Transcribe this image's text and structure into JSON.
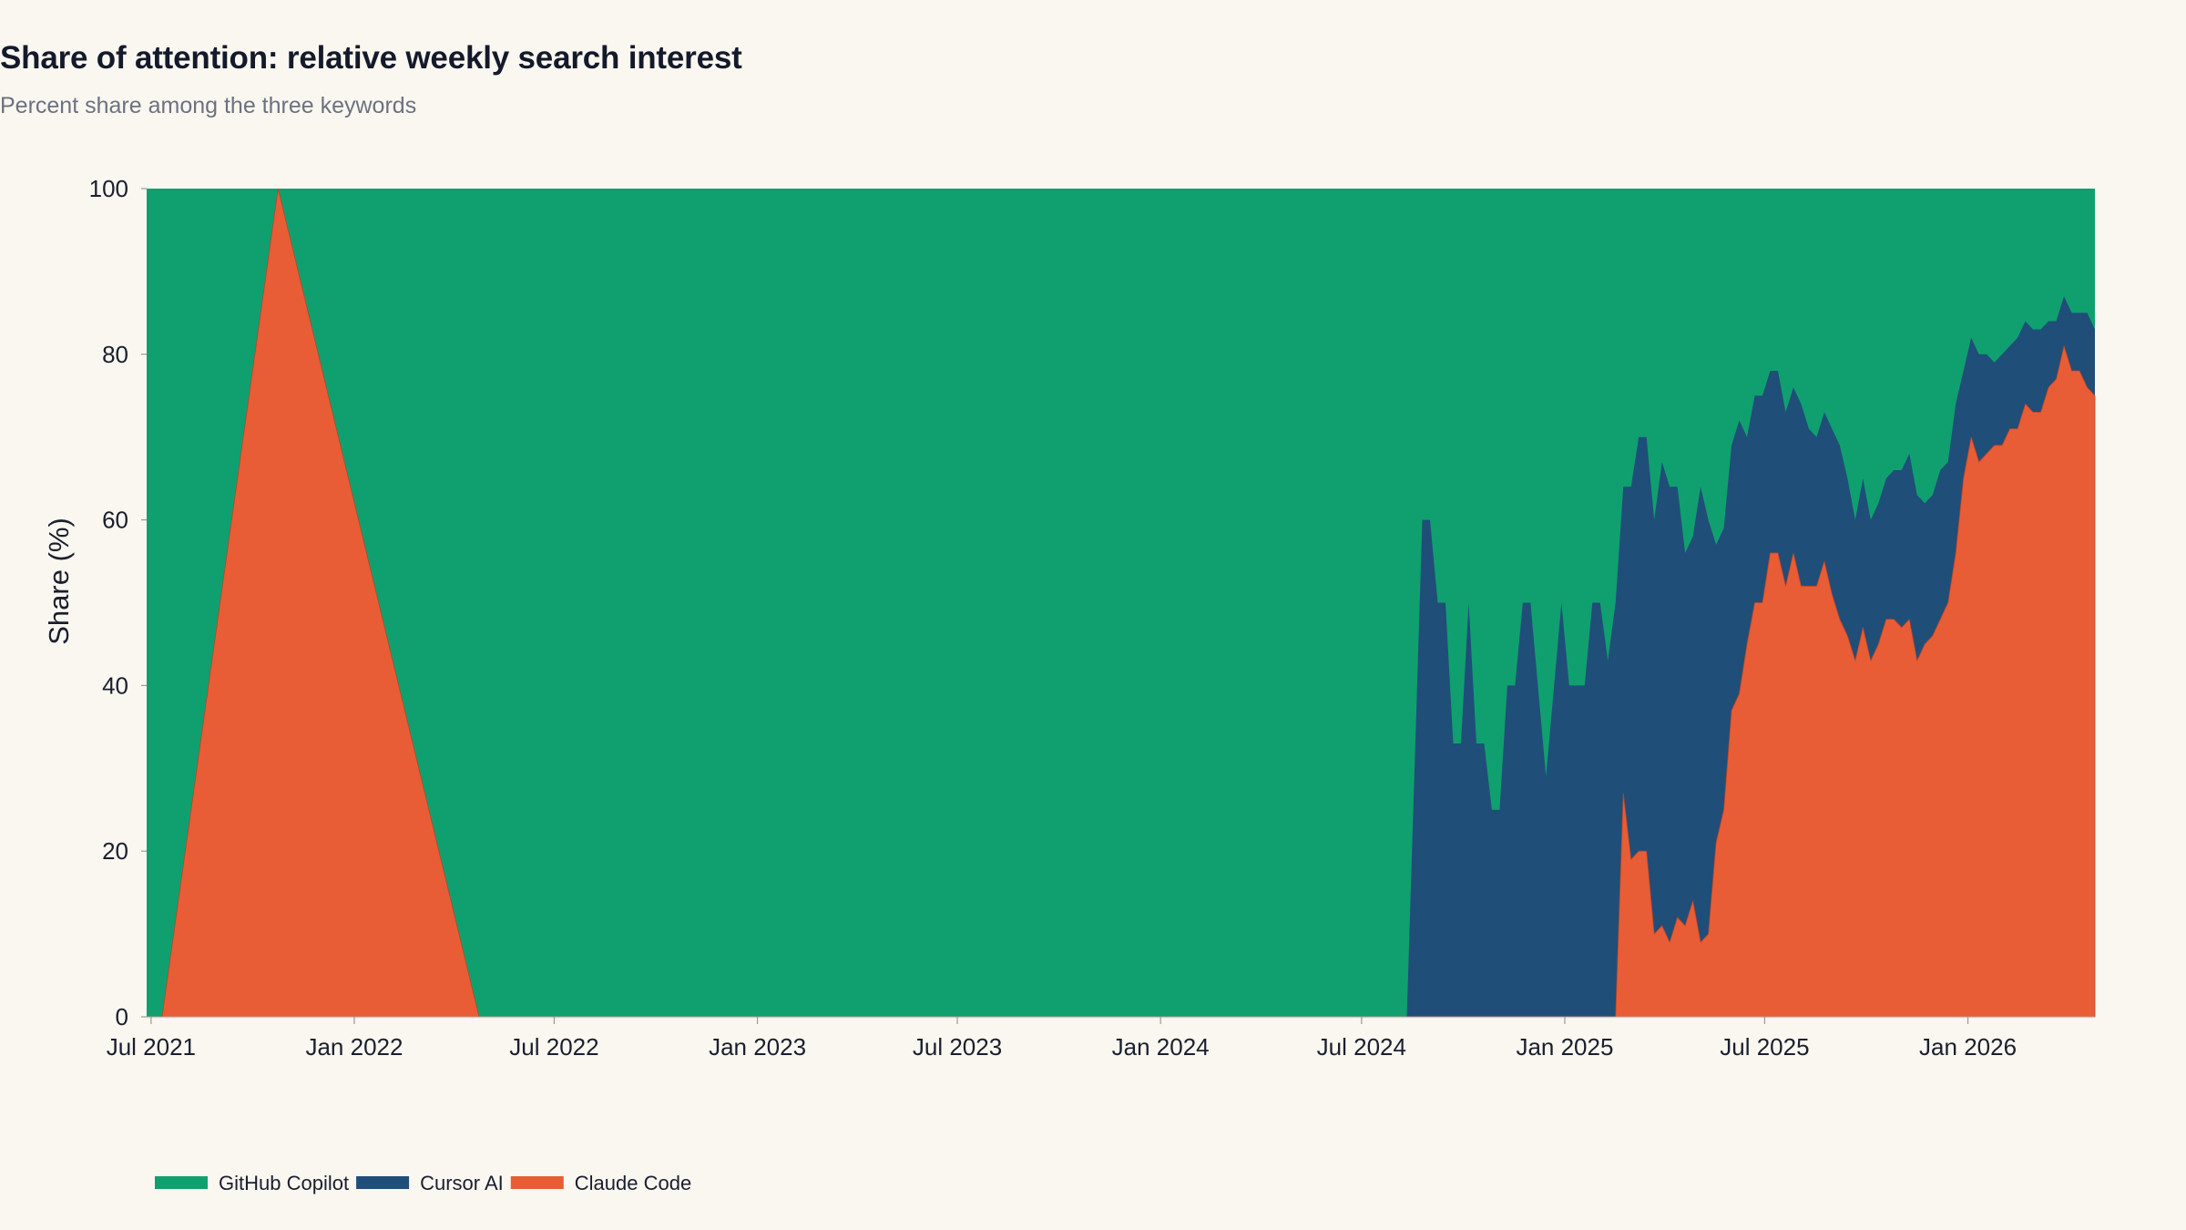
{
  "title": "Share of attention: relative weekly search interest",
  "subtitle": "Percent share among the three keywords",
  "chart_data": {
    "type": "area",
    "stacked": true,
    "normalized_percent": true,
    "ylabel": "Share (%)",
    "xlabel": "",
    "ylim": [
      0,
      100
    ],
    "xlim": [
      "2021-06-27",
      "2026-04-26"
    ],
    "y_ticks": [
      0,
      20,
      40,
      60,
      80,
      100
    ],
    "x_ticks": [
      {
        "date": "2021-07-01",
        "label": "Jul 2021"
      },
      {
        "date": "2022-01-01",
        "label": "Jan 2022"
      },
      {
        "date": "2022-07-01",
        "label": "Jul 2022"
      },
      {
        "date": "2023-01-01",
        "label": "Jan 2023"
      },
      {
        "date": "2023-07-01",
        "label": "Jul 2023"
      },
      {
        "date": "2024-01-01",
        "label": "Jan 2024"
      },
      {
        "date": "2024-07-01",
        "label": "Jul 2024"
      },
      {
        "date": "2025-01-01",
        "label": "Jan 2025"
      },
      {
        "date": "2025-07-01",
        "label": "Jul 2025"
      },
      {
        "date": "2026-01-01",
        "label": "Jan 2026"
      }
    ],
    "grid": false,
    "legend_position": "bottom-left",
    "stack_order": [
      "Claude Code",
      "Cursor AI",
      "GitHub Copilot"
    ],
    "series": [
      {
        "name": "GitHub Copilot",
        "color": "#10a06f",
        "values": "remainder to 100"
      },
      {
        "name": "Cursor AI",
        "color": "#1f4e79",
        "points": [
          [
            "2021-06-27",
            0
          ],
          [
            "2024-08-11",
            0
          ],
          [
            "2024-08-25",
            60
          ],
          [
            "2024-09-01",
            60
          ],
          [
            "2024-09-08",
            50
          ],
          [
            "2024-09-15",
            50
          ],
          [
            "2024-09-22",
            33
          ],
          [
            "2024-09-29",
            33
          ],
          [
            "2024-10-06",
            50
          ],
          [
            "2024-10-13",
            33
          ],
          [
            "2024-10-20",
            33
          ],
          [
            "2024-10-27",
            25
          ],
          [
            "2024-11-03",
            25
          ],
          [
            "2024-11-10",
            40
          ],
          [
            "2024-11-17",
            40
          ],
          [
            "2024-11-24",
            50
          ],
          [
            "2024-12-01",
            50
          ],
          [
            "2024-12-15",
            29
          ],
          [
            "2024-12-29",
            50
          ],
          [
            "2025-01-05",
            40
          ],
          [
            "2025-01-19",
            40
          ],
          [
            "2025-01-26",
            50
          ],
          [
            "2025-02-02",
            50
          ],
          [
            "2025-02-09",
            43
          ],
          [
            "2025-02-16",
            50
          ],
          [
            "2025-02-23",
            64
          ],
          [
            "2025-03-02",
            64
          ],
          [
            "2025-03-09",
            70
          ],
          [
            "2025-03-16",
            70
          ],
          [
            "2025-03-23",
            60
          ],
          [
            "2025-03-30",
            67
          ],
          [
            "2025-04-06",
            64
          ],
          [
            "2025-04-13",
            64
          ],
          [
            "2025-04-20",
            56
          ],
          [
            "2025-04-27",
            58
          ],
          [
            "2025-05-04",
            64
          ],
          [
            "2025-05-11",
            60
          ],
          [
            "2025-05-18",
            57
          ],
          [
            "2025-05-25",
            59
          ],
          [
            "2025-06-01",
            69
          ],
          [
            "2025-06-08",
            72
          ],
          [
            "2025-06-15",
            70
          ],
          [
            "2025-06-22",
            75
          ],
          [
            "2025-06-29",
            75
          ],
          [
            "2025-07-06",
            78
          ],
          [
            "2025-07-13",
            78
          ],
          [
            "2025-07-20",
            73
          ],
          [
            "2025-07-27",
            76
          ],
          [
            "2025-08-03",
            74
          ],
          [
            "2025-08-10",
            71
          ],
          [
            "2025-08-17",
            70
          ],
          [
            "2025-08-24",
            73
          ],
          [
            "2025-08-31",
            71
          ],
          [
            "2025-09-07",
            69
          ],
          [
            "2025-09-14",
            65
          ],
          [
            "2025-09-21",
            60
          ],
          [
            "2025-09-28",
            65
          ],
          [
            "2025-10-05",
            60
          ],
          [
            "2025-10-12",
            62
          ],
          [
            "2025-10-19",
            65
          ],
          [
            "2025-10-26",
            66
          ],
          [
            "2025-11-02",
            66
          ],
          [
            "2025-11-09",
            68
          ],
          [
            "2025-11-16",
            63
          ],
          [
            "2025-11-23",
            62
          ],
          [
            "2025-11-30",
            63
          ],
          [
            "2025-12-07",
            66
          ],
          [
            "2025-12-14",
            67
          ],
          [
            "2025-12-21",
            74
          ],
          [
            "2025-12-28",
            78
          ],
          [
            "2026-01-04",
            82
          ],
          [
            "2026-01-11",
            80
          ],
          [
            "2026-01-18",
            80
          ],
          [
            "2026-01-25",
            79
          ],
          [
            "2026-02-01",
            80
          ],
          [
            "2026-02-08",
            81
          ],
          [
            "2026-02-15",
            82
          ],
          [
            "2026-02-22",
            84
          ],
          [
            "2026-03-01",
            83
          ],
          [
            "2026-03-08",
            83
          ],
          [
            "2026-03-15",
            84
          ],
          [
            "2026-03-22",
            84
          ],
          [
            "2026-03-29",
            87
          ],
          [
            "2026-04-05",
            85
          ],
          [
            "2026-04-12",
            85
          ],
          [
            "2026-04-19",
            85
          ],
          [
            "2026-04-26",
            83
          ]
        ]
      },
      {
        "name": "Claude Code",
        "color": "#e85d35",
        "points": [
          [
            "2021-06-27",
            0
          ],
          [
            "2021-07-11",
            0
          ],
          [
            "2021-10-24",
            100
          ],
          [
            "2022-04-24",
            0
          ],
          [
            "2025-02-16",
            0
          ],
          [
            "2025-02-23",
            27
          ],
          [
            "2025-03-02",
            19
          ],
          [
            "2025-03-09",
            20
          ],
          [
            "2025-03-16",
            20
          ],
          [
            "2025-03-23",
            10
          ],
          [
            "2025-03-30",
            11
          ],
          [
            "2025-04-06",
            9
          ],
          [
            "2025-04-13",
            12
          ],
          [
            "2025-04-20",
            11
          ],
          [
            "2025-04-27",
            14
          ],
          [
            "2025-05-04",
            9
          ],
          [
            "2025-05-11",
            10
          ],
          [
            "2025-05-18",
            21
          ],
          [
            "2025-05-25",
            25
          ],
          [
            "2025-06-01",
            37
          ],
          [
            "2025-06-08",
            39
          ],
          [
            "2025-06-15",
            45
          ],
          [
            "2025-06-22",
            50
          ],
          [
            "2025-06-29",
            50
          ],
          [
            "2025-07-06",
            56
          ],
          [
            "2025-07-13",
            56
          ],
          [
            "2025-07-20",
            52
          ],
          [
            "2025-07-27",
            56
          ],
          [
            "2025-08-03",
            52
          ],
          [
            "2025-08-10",
            52
          ],
          [
            "2025-08-17",
            52
          ],
          [
            "2025-08-24",
            55
          ],
          [
            "2025-08-31",
            51
          ],
          [
            "2025-09-07",
            48
          ],
          [
            "2025-09-14",
            46
          ],
          [
            "2025-09-21",
            43
          ],
          [
            "2025-09-28",
            47
          ],
          [
            "2025-10-05",
            43
          ],
          [
            "2025-10-12",
            45
          ],
          [
            "2025-10-19",
            48
          ],
          [
            "2025-10-26",
            48
          ],
          [
            "2025-11-02",
            47
          ],
          [
            "2025-11-09",
            48
          ],
          [
            "2025-11-16",
            43
          ],
          [
            "2025-11-23",
            45
          ],
          [
            "2025-11-30",
            46
          ],
          [
            "2025-12-07",
            48
          ],
          [
            "2025-12-14",
            50
          ],
          [
            "2025-12-21",
            56
          ],
          [
            "2025-12-28",
            65
          ],
          [
            "2026-01-04",
            70
          ],
          [
            "2026-01-11",
            67
          ],
          [
            "2026-01-18",
            68
          ],
          [
            "2026-01-25",
            69
          ],
          [
            "2026-02-01",
            69
          ],
          [
            "2026-02-08",
            71
          ],
          [
            "2026-02-15",
            71
          ],
          [
            "2026-02-22",
            74
          ],
          [
            "2026-03-01",
            73
          ],
          [
            "2026-03-08",
            73
          ],
          [
            "2026-03-15",
            76
          ],
          [
            "2026-03-22",
            77
          ],
          [
            "2026-03-29",
            81
          ],
          [
            "2026-04-05",
            78
          ],
          [
            "2026-04-12",
            78
          ],
          [
            "2026-04-19",
            76
          ],
          [
            "2026-04-26",
            75
          ]
        ]
      }
    ]
  },
  "legend": [
    {
      "label": "GitHub Copilot",
      "color": "#10a06f"
    },
    {
      "label": "Cursor AI",
      "color": "#1f4e79"
    },
    {
      "label": "Claude Code",
      "color": "#e85d35"
    }
  ]
}
